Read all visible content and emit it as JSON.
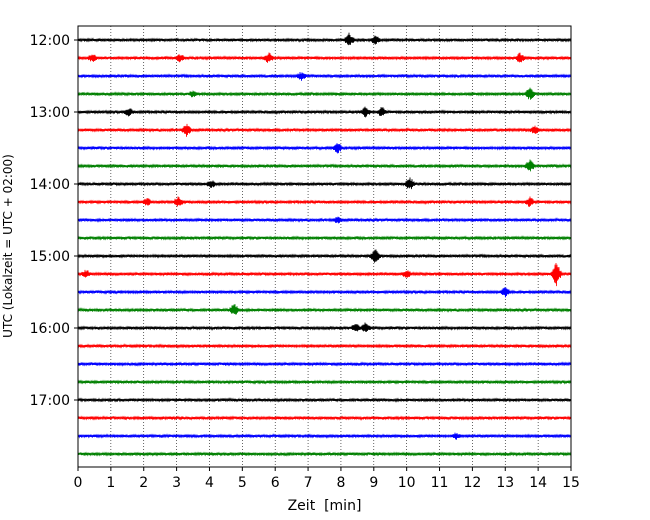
{
  "chart_data": {
    "type": "line",
    "title": "",
    "xlabel": "Zeit  [min]",
    "ylabel": "UTC (Lokalzeit = UTC + 02:00)",
    "xlim": [
      0,
      15
    ],
    "x_ticks": [
      0,
      1,
      2,
      3,
      4,
      5,
      6,
      7,
      8,
      9,
      10,
      11,
      12,
      13,
      14,
      15
    ],
    "x_tick_labels": [
      "0",
      "1",
      "2",
      "3",
      "4",
      "5",
      "6",
      "7",
      "8",
      "9",
      "10",
      "11",
      "12",
      "13",
      "14",
      "15"
    ],
    "y_tick_labels": [
      "12:00",
      "13:00",
      "14:00",
      "15:00",
      "16:00",
      "17:00"
    ],
    "y_tick_rows": [
      0,
      4,
      8,
      12,
      16,
      20
    ],
    "grid": "vertical dotted lines at each minute",
    "rows": 24,
    "row_minutes": 15,
    "color_cycle": [
      "#000000",
      "#ff0000",
      "#0000ff",
      "#008000"
    ],
    "events": [
      {
        "row": 0,
        "t": 8.25,
        "amp": 7
      },
      {
        "row": 0,
        "t": 9.05,
        "amp": 4
      },
      {
        "row": 1,
        "t": 0.45,
        "amp": 4
      },
      {
        "row": 1,
        "t": 3.1,
        "amp": 4
      },
      {
        "row": 1,
        "t": 5.8,
        "amp": 5
      },
      {
        "row": 1,
        "t": 13.45,
        "amp": 5
      },
      {
        "row": 2,
        "t": 6.8,
        "amp": 4
      },
      {
        "row": 3,
        "t": 3.5,
        "amp": 3
      },
      {
        "row": 3,
        "t": 13.75,
        "amp": 6
      },
      {
        "row": 4,
        "t": 1.55,
        "amp": 4
      },
      {
        "row": 4,
        "t": 8.75,
        "amp": 5
      },
      {
        "row": 4,
        "t": 9.25,
        "amp": 5
      },
      {
        "row": 5,
        "t": 3.3,
        "amp": 6
      },
      {
        "row": 5,
        "t": 13.9,
        "amp": 4
      },
      {
        "row": 6,
        "t": 7.9,
        "amp": 5
      },
      {
        "row": 7,
        "t": 13.75,
        "amp": 6
      },
      {
        "row": 8,
        "t": 4.05,
        "amp": 4
      },
      {
        "row": 8,
        "t": 10.1,
        "amp": 6
      },
      {
        "row": 9,
        "t": 2.1,
        "amp": 4
      },
      {
        "row": 9,
        "t": 3.05,
        "amp": 5
      },
      {
        "row": 9,
        "t": 13.75,
        "amp": 5
      },
      {
        "row": 10,
        "t": 7.9,
        "amp": 3
      },
      {
        "row": 12,
        "t": 9.05,
        "amp": 7
      },
      {
        "row": 13,
        "t": 0.25,
        "amp": 4
      },
      {
        "row": 13,
        "t": 10.0,
        "amp": 4
      },
      {
        "row": 13,
        "t": 14.55,
        "amp": 12
      },
      {
        "row": 14,
        "t": 13.0,
        "amp": 5
      },
      {
        "row": 15,
        "t": 4.75,
        "amp": 6
      },
      {
        "row": 16,
        "t": 8.45,
        "amp": 4
      },
      {
        "row": 16,
        "t": 8.75,
        "amp": 5
      },
      {
        "row": 22,
        "t": 11.5,
        "amp": 3
      }
    ]
  }
}
